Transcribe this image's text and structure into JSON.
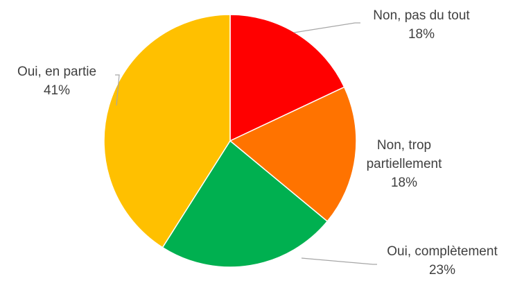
{
  "chart_data": {
    "type": "pie",
    "title": "",
    "legend": "none",
    "slices": [
      {
        "label": "Non, pas du tout",
        "value": 18,
        "value_label": "18%",
        "color": "#ff0000"
      },
      {
        "label": "Non, trop partiellement",
        "label_lines": [
          "Non, trop",
          "partiellement"
        ],
        "value": 18,
        "value_label": "18%",
        "color": "#ff7300"
      },
      {
        "label": "Oui, complètement",
        "value": 23,
        "value_label": "23%",
        "color": "#00b050"
      },
      {
        "label": "Oui, en partie",
        "value": 41,
        "value_label": "41%",
        "color": "#ffc000"
      }
    ]
  }
}
